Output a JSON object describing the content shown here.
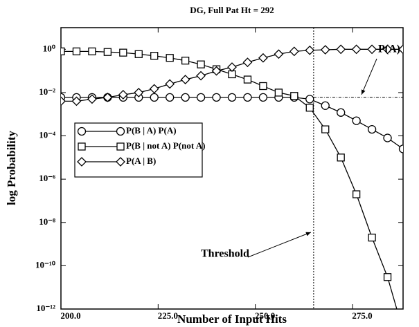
{
  "chart_data": {
    "type": "line",
    "title": "DG, Full Pat Ht = 292",
    "x_label": "Number of Input Hits",
    "y_label": "log Probability",
    "x": [
      200,
      204,
      208,
      212,
      216,
      220,
      224,
      228,
      232,
      236,
      240,
      244,
      248,
      252,
      256,
      260,
      264,
      268,
      272,
      276,
      280,
      284,
      288
    ],
    "series": [
      {
        "name": "P(B | A) P(A)",
        "marker": "circle",
        "color": "#000000",
        "values": [
          0.006,
          0.006,
          0.006,
          0.006,
          0.006,
          0.006,
          0.006,
          0.006,
          0.006,
          0.006,
          0.006,
          0.006,
          0.006,
          0.006,
          0.006,
          0.006,
          0.005,
          0.0025,
          0.0012,
          0.0005,
          0.0002,
          8e-05,
          2.5e-05
        ]
      },
      {
        "name": "P(B | not A) P(not A)",
        "marker": "square",
        "color": "#000000",
        "values": [
          0.8,
          0.8,
          0.8,
          0.75,
          0.7,
          0.6,
          0.5,
          0.4,
          0.3,
          0.2,
          0.12,
          0.07,
          0.04,
          0.02,
          0.01,
          0.007,
          0.002,
          0.0002,
          1e-05,
          2e-07,
          2e-09,
          3e-11,
          1e-13
        ]
      },
      {
        "name": "P(A | B)",
        "marker": "diamond",
        "color": "#000000",
        "values": [
          0.004,
          0.004,
          0.005,
          0.006,
          0.008,
          0.01,
          0.015,
          0.025,
          0.04,
          0.06,
          0.1,
          0.15,
          0.25,
          0.4,
          0.6,
          0.8,
          0.9,
          0.95,
          1,
          1,
          1,
          1,
          1
        ]
      }
    ],
    "xlim": [
      200,
      288
    ],
    "xticks": [
      {
        "value": 200,
        "label": "200.0"
      },
      {
        "value": 225,
        "label": "225.0"
      },
      {
        "value": 250,
        "label": "250.0"
      },
      {
        "value": 275,
        "label": "275.0"
      }
    ],
    "ylim": [
      1e-12,
      10
    ],
    "yscale": "log",
    "yticks": [
      {
        "value": 1,
        "label": "10⁰"
      },
      {
        "value": 0.01,
        "label": "10⁻²"
      },
      {
        "value": 0.0001,
        "label": "10⁻⁴"
      },
      {
        "value": 1e-06,
        "label": "10⁻⁶"
      },
      {
        "value": 1e-08,
        "label": "10⁻⁸"
      },
      {
        "value": 1e-10,
        "label": "10⁻¹⁰"
      },
      {
        "value": 1e-12,
        "label": "10⁻¹²"
      }
    ],
    "reference_lines": {
      "x": 265,
      "y": 0.006
    },
    "annotations": [
      "P(A)",
      "Threshold"
    ],
    "legend": "upper left"
  }
}
